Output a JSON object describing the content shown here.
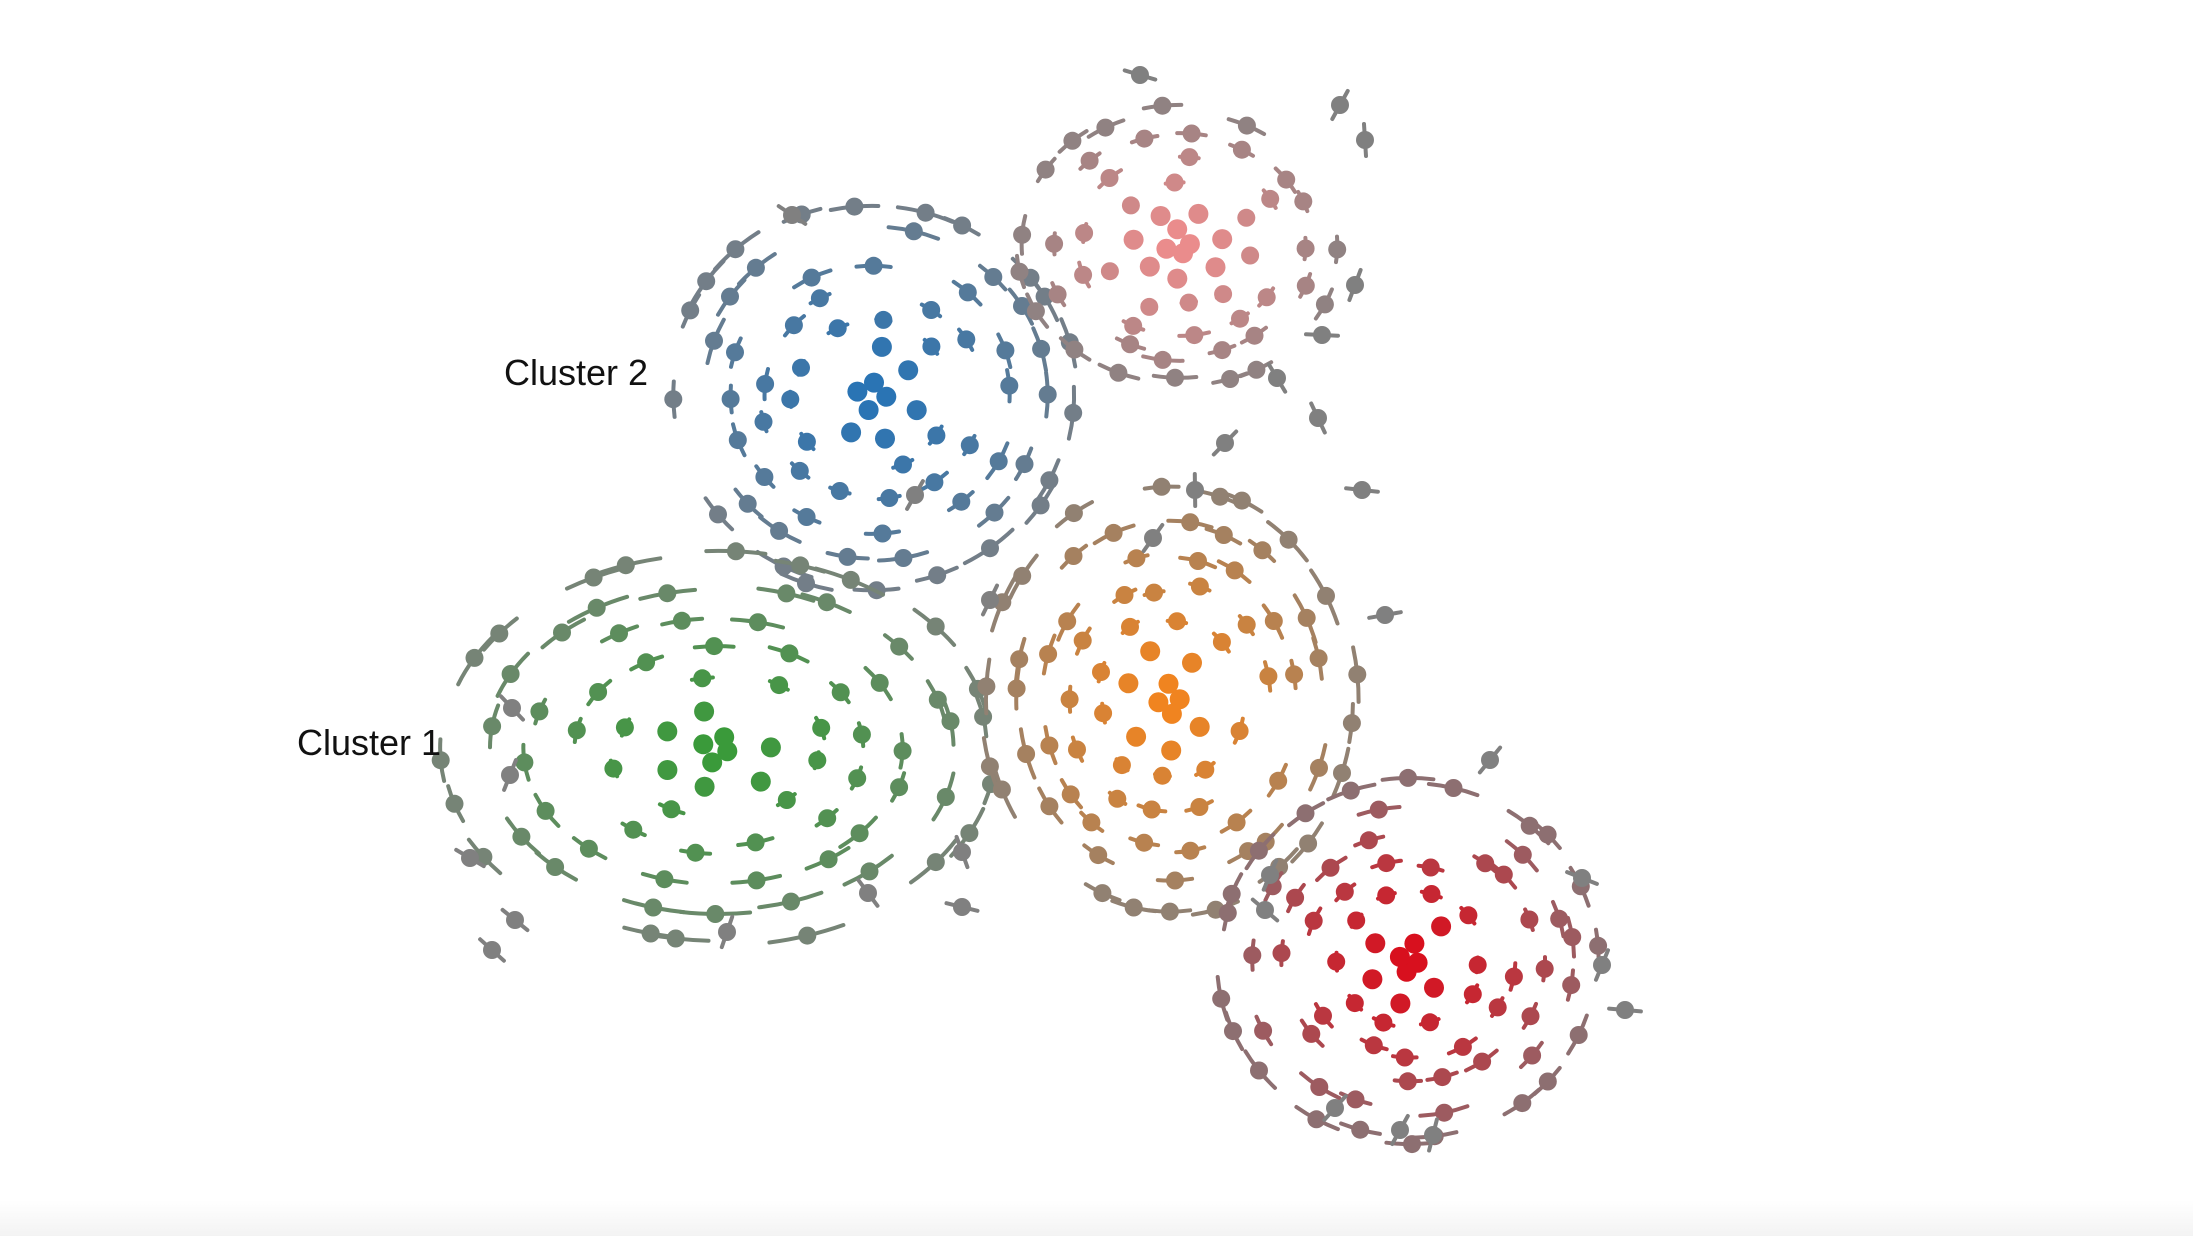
{
  "labels": {
    "cluster_1": "Cluster 1",
    "cluster_2": "Cluster 2"
  },
  "colors": {
    "background": "#ffffff",
    "blue": "#2a74b4",
    "pink": "#ea8c8c",
    "green": "#3a9a3a",
    "orange": "#f08420",
    "red": "#d8101e",
    "gray": "#808080"
  },
  "clusters": [
    {
      "id": "blue",
      "color": "#2a74b4",
      "rings": 7,
      "labelled": "cluster_2"
    },
    {
      "id": "pink",
      "color": "#ea8c8c",
      "rings": 6
    },
    {
      "id": "green",
      "color": "#3a9a3a",
      "rings": 7,
      "labelled": "cluster_1"
    },
    {
      "id": "orange",
      "color": "#f08420",
      "rings": 7
    },
    {
      "id": "red",
      "color": "#d8101e",
      "rings": 7
    }
  ]
}
